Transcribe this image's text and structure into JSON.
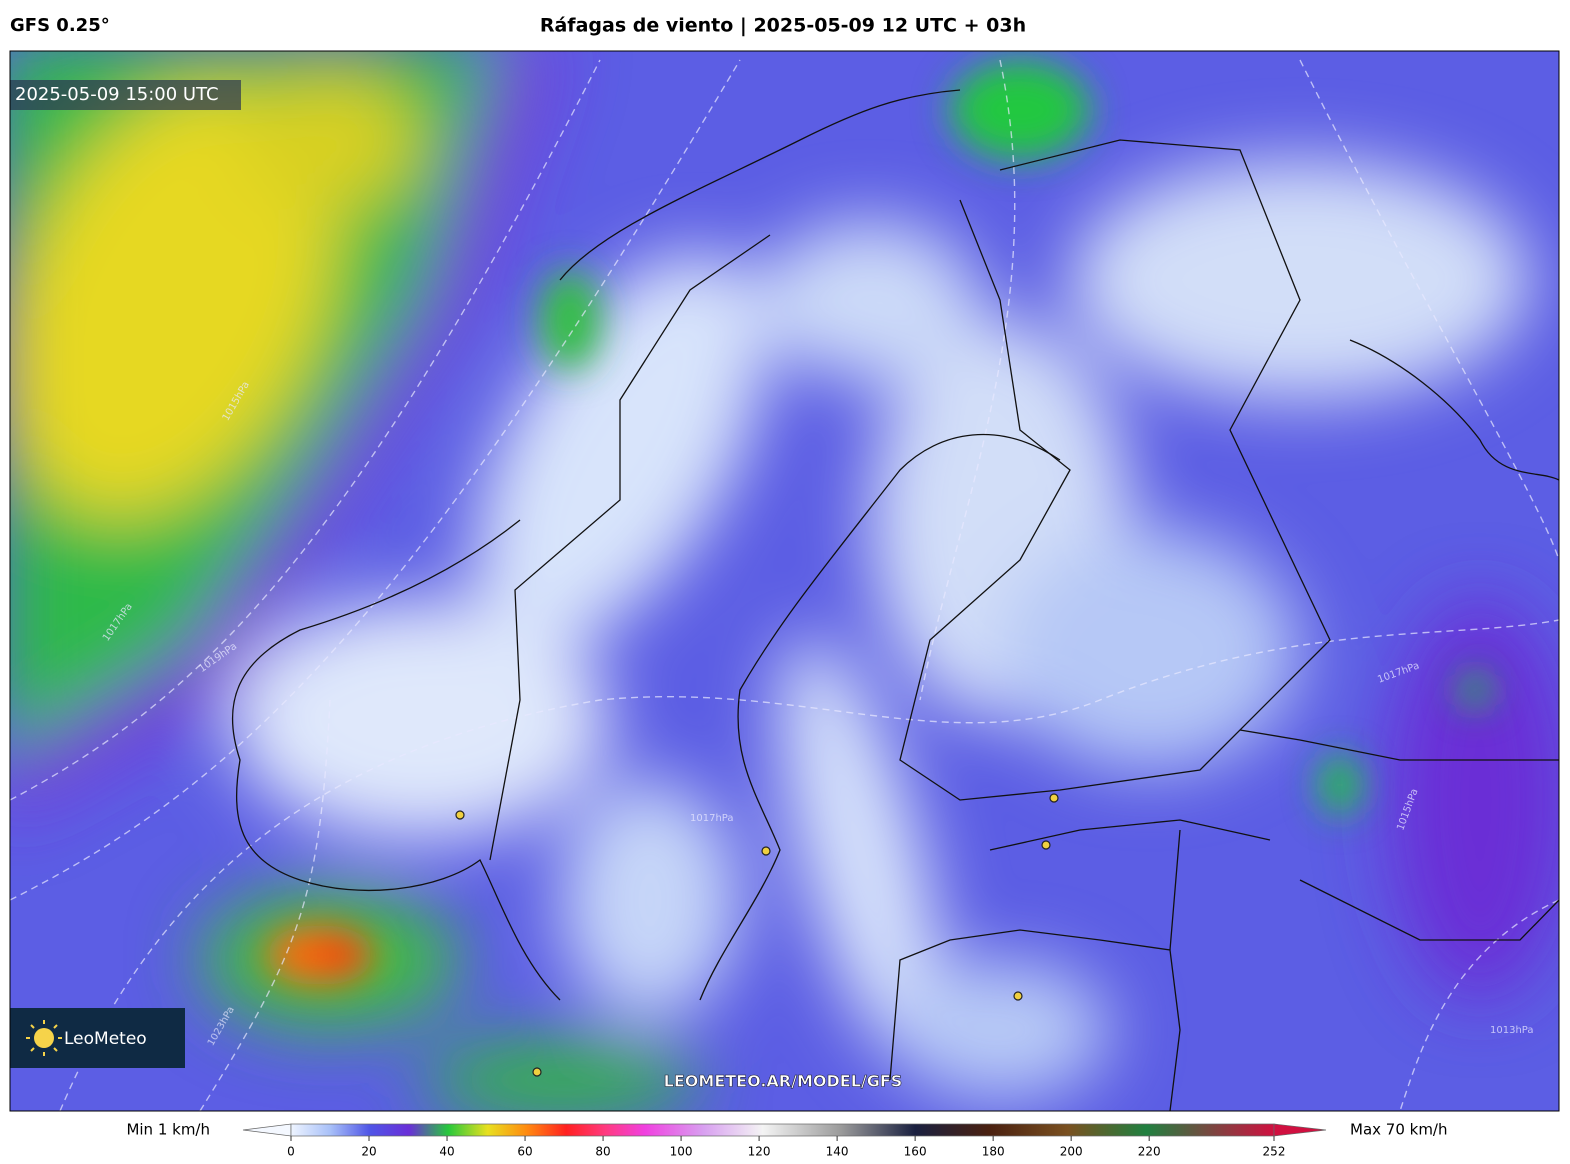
{
  "header": {
    "model": "GFS 0.25°",
    "title": "Ráfagas de viento | 2025-05-09 12 UTC + 03h"
  },
  "map": {
    "valid_time": "2025-05-09 15:00 UTC",
    "watermark": "LEOMETEO.AR/MODEL/GFS",
    "logo": "LeoMeteo",
    "isobar_labels": [
      "1019hPa",
      "1017hPa",
      "1015hPa",
      "1017hPa",
      "1017hPa",
      "1015hPa",
      "1013hPa",
      "1023hPa"
    ]
  },
  "colorbar": {
    "min_label": "Min 1 km/h",
    "max_label": "Max 70 km/h",
    "range": [
      0,
      252
    ],
    "ticks": [
      0,
      20,
      40,
      60,
      80,
      100,
      120,
      140,
      160,
      180,
      200,
      220,
      252
    ]
  }
}
